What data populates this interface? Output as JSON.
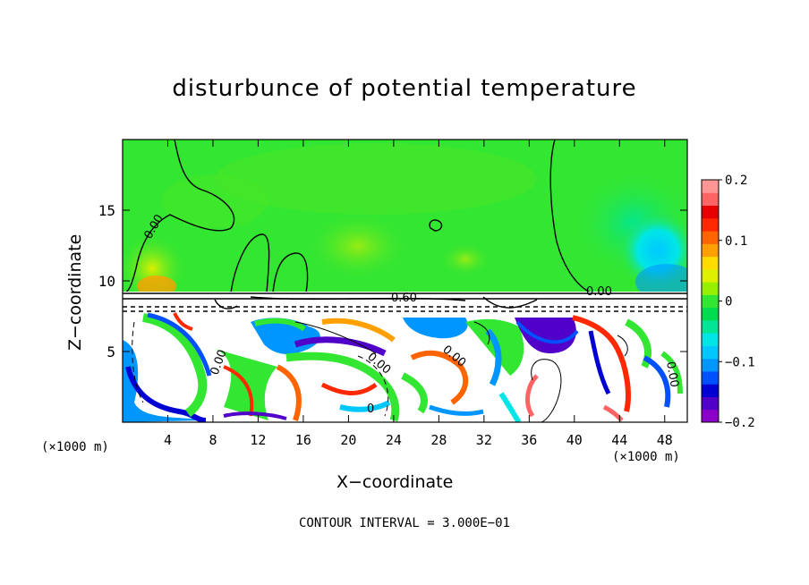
{
  "chart_data": {
    "type": "heatmap",
    "title": "disturbunce of potential temperature",
    "xlabel": "X−coordinate",
    "ylabel": "Z−coordinate",
    "x_unit_left": "(×1000 m)",
    "x_unit_right": "(×1000 m)",
    "x_ticks": [
      "4",
      "8",
      "12",
      "16",
      "20",
      "24",
      "28",
      "32",
      "36",
      "40",
      "44",
      "48"
    ],
    "x_tick_values": [
      4,
      8,
      12,
      16,
      20,
      24,
      28,
      32,
      36,
      40,
      44,
      48
    ],
    "y_ticks": [
      "5",
      "10",
      "15"
    ],
    "y_tick_values": [
      5,
      10,
      15
    ],
    "xlim": [
      0,
      50
    ],
    "ylim": [
      0,
      20
    ],
    "colorbar": {
      "ticks": [
        "0.2",
        "0.1",
        "0",
        "−0.1",
        "−0.2"
      ],
      "tick_values": [
        0.2,
        0.1,
        0,
        -0.1,
        -0.2
      ],
      "range": [
        -0.2,
        0.2
      ],
      "colors": [
        "#8a00c8",
        "#5000c8",
        "#0000d2",
        "#0050ff",
        "#0096ff",
        "#00c8ff",
        "#00e6e6",
        "#00e696",
        "#00dc50",
        "#32e632",
        "#96f000",
        "#dcf000",
        "#ffdc00",
        "#ffa000",
        "#ff6400",
        "#ff2800",
        "#e60000",
        "#ff6464",
        "#ff9696"
      ]
    },
    "contour_labels": [
      "0.00",
      "0.00",
      "0.00",
      "0.00",
      "0.00",
      "0.00",
      "0.60",
      "0"
    ],
    "contour_interval": "CONTOUR INTERVAL = 3.000E−01"
  }
}
